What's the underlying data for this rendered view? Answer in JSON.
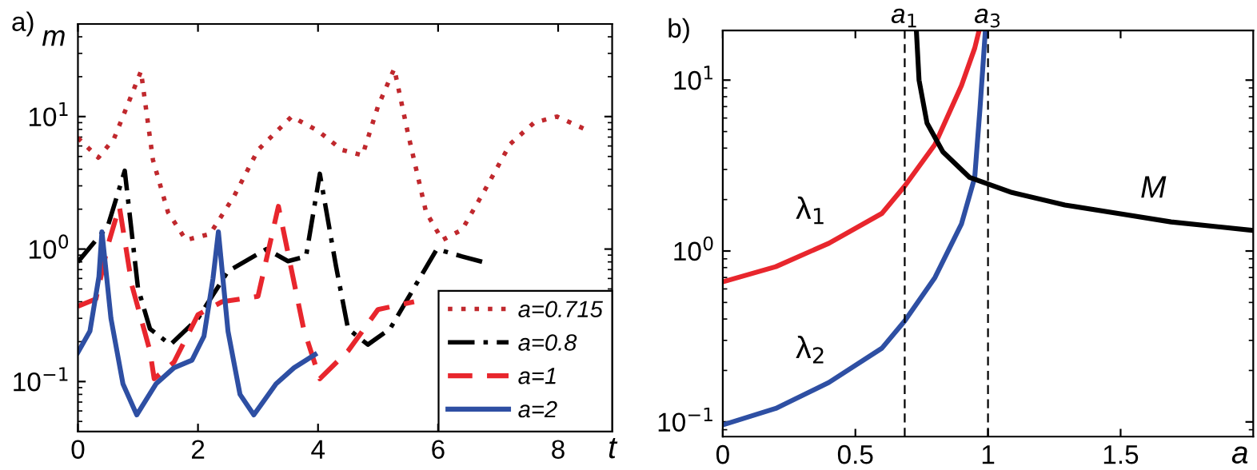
{
  "chart_data": [
    {
      "type": "line",
      "title": "a)",
      "ylabel": "m",
      "xlabel": "t",
      "log": "y",
      "grid": false,
      "legend": "bottom right",
      "xlim": [
        0,
        8.9
      ],
      "xticks": [
        0,
        2,
        4,
        6,
        8
      ],
      "ylim": [
        0.042,
        50
      ],
      "yticks": [
        {
          "value": 0.1,
          "label": "10$^{−1}$"
        },
        {
          "value": 1,
          "label": "10$^{0}$"
        },
        {
          "value": 10,
          "label": "10$^{1}$"
        }
      ],
      "series": [
        {
          "name": "a=0.715",
          "color": "#c0282d",
          "line_style": "dotted",
          "x": [
            0,
            0.34,
            0.6,
            0.85,
            1.05,
            1.25,
            1.5,
            1.8,
            2.2,
            2.6,
            3.0,
            3.56,
            4.0,
            4.4,
            4.74,
            5.0,
            5.27,
            5.5,
            5.8,
            6.07,
            6.4,
            6.8,
            7.2,
            7.6,
            7.98,
            8.43
          ],
          "values": [
            6.9,
            4.9,
            6.8,
            13,
            22,
            4.7,
            1.9,
            1.17,
            1.3,
            2.5,
            5.6,
            10,
            7.8,
            5.6,
            5.1,
            12,
            23,
            7.4,
            1.9,
            1.17,
            1.4,
            2.9,
            6.2,
            9,
            10,
            8.1
          ]
        },
        {
          "name": "a=0.8",
          "color": "#000000",
          "line_style": "dashdot",
          "x": [
            0,
            0.5,
            0.78,
            1.0,
            1.2,
            1.54,
            2.0,
            2.5,
            3.14,
            3.5,
            3.8,
            4.03,
            4.3,
            4.5,
            4.83,
            5.2,
            5.6,
            5.98,
            6.4,
            6.74
          ],
          "values": [
            0.8,
            1.5,
            3.9,
            0.51,
            0.25,
            0.19,
            0.3,
            0.68,
            1.0,
            0.81,
            0.88,
            3.7,
            0.74,
            0.25,
            0.19,
            0.25,
            0.51,
            1.0,
            0.88,
            0.8
          ]
        },
        {
          "name": "a=1",
          "color": "#e8262d",
          "line_style": "dashed",
          "x": [
            0,
            0.3,
            0.5,
            0.69,
            0.9,
            1.2,
            1.27,
            1.6,
            2.0,
            2.4,
            3.0,
            3.34,
            3.76,
            4.03,
            4.5,
            5.0,
            5.6
          ],
          "values": [
            0.37,
            0.42,
            1.07,
            2.1,
            0.53,
            0.17,
            0.105,
            0.14,
            0.32,
            0.4,
            0.44,
            2.1,
            0.25,
            0.105,
            0.17,
            0.35,
            0.4
          ]
        },
        {
          "name": "a=2",
          "color": "#2e4fa3",
          "line_style": "solid",
          "x": [
            0,
            0.2,
            0.35,
            0.4,
            0.55,
            0.75,
            0.98,
            1.3,
            1.6,
            1.9,
            2.1,
            2.25,
            2.34,
            2.5,
            2.7,
            2.93,
            3.3,
            3.6,
            3.95
          ],
          "values": [
            0.166,
            0.24,
            0.62,
            1.35,
            0.3,
            0.096,
            0.056,
            0.096,
            0.127,
            0.145,
            0.22,
            0.6,
            1.35,
            0.24,
            0.08,
            0.056,
            0.096,
            0.127,
            0.16
          ]
        }
      ]
    },
    {
      "type": "line",
      "title": "b)",
      "xlabel": "a",
      "log": "y",
      "grid": false,
      "legend": false,
      "xlim": [
        0,
        2
      ],
      "xticks": [
        0,
        0.5,
        1,
        1.5
      ],
      "ylim": [
        0.082,
        19.5
      ],
      "yticks": [
        {
          "value": 0.1,
          "label": "10$^{−1}$"
        },
        {
          "value": 1,
          "label": "10$^{0}$"
        },
        {
          "value": 10,
          "label": "10$^{1}$"
        }
      ],
      "ref_lines": [
        {
          "axis": "x",
          "value": 0.686,
          "label": "a$_{1}$",
          "line_style": "dashed",
          "color": "#000000"
        },
        {
          "axis": "x",
          "value": 1.0,
          "label": "a$_{3}$",
          "line_style": "dashed",
          "color": "#000000"
        }
      ],
      "series": [
        {
          "name": "λ$_{1}$",
          "color": "#e8262d",
          "line_style": "solid",
          "x": [
            0,
            0.2,
            0.4,
            0.6,
            0.686,
            0.8,
            0.9,
            0.95,
            0.966
          ],
          "values": [
            0.66,
            0.81,
            1.11,
            1.66,
            2.4,
            4.2,
            9.3,
            15.4,
            19.4
          ]
        },
        {
          "name": "λ$_{2}$",
          "color": "#2e4fa3",
          "line_style": "solid",
          "x": [
            0,
            0.2,
            0.4,
            0.6,
            0.686,
            0.8,
            0.9,
            0.95,
            0.97,
            0.99
          ],
          "values": [
            0.096,
            0.12,
            0.17,
            0.27,
            0.39,
            0.7,
            1.44,
            2.7,
            6.9,
            19.4
          ]
        },
        {
          "name": "M",
          "color": "#000000",
          "line_style": "solid",
          "x": [
            0.73,
            0.74,
            0.77,
            0.83,
            0.93,
            1.09,
            1.29,
            1.49,
            1.69,
            2.0
          ],
          "values": [
            19.4,
            10,
            5.6,
            3.8,
            2.7,
            2.2,
            1.86,
            1.66,
            1.48,
            1.32
          ]
        }
      ]
    }
  ]
}
